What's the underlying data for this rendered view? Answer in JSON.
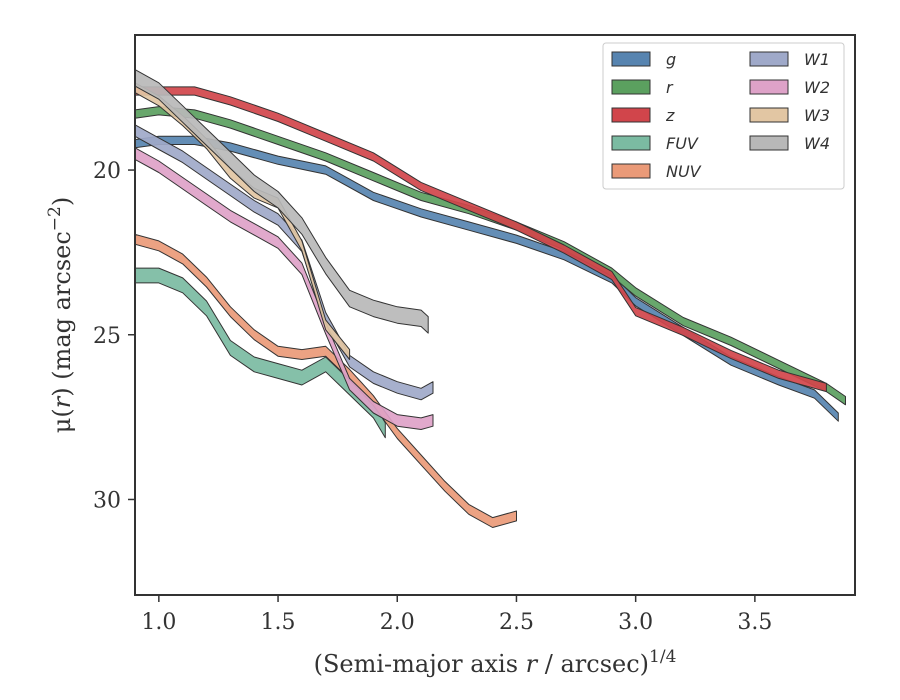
{
  "chart_data": {
    "type": "area",
    "xlabel_main": "(Semi-major axis ",
    "xlabel_var": "r",
    "xlabel_tail": " / arcsec)",
    "xlabel_exp": "1/4",
    "ylabel_pre": "μ(",
    "ylabel_var": "r",
    "ylabel_mid": ") (mag arcsec",
    "ylabel_exp": "−2",
    "ylabel_post": ")",
    "xlim": [
      0.9,
      3.92
    ],
    "ylim": [
      32.9,
      15.9
    ],
    "y_inverted": true,
    "xticks": [
      1.0,
      1.5,
      2.0,
      2.5,
      3.0,
      3.5
    ],
    "xtick_labels": [
      "1.0",
      "1.5",
      "2.0",
      "2.5",
      "3.0",
      "3.5"
    ],
    "yticks": [
      20,
      25,
      30
    ],
    "ytick_labels": [
      "20",
      "25",
      "30"
    ],
    "legend_position": "top-right",
    "legend_columns": 2,
    "series": [
      {
        "name": "g",
        "color": "#5784b0",
        "points": [
          [
            0.9,
            19.2
          ],
          [
            1.0,
            19.1
          ],
          [
            1.15,
            19.1
          ],
          [
            1.3,
            19.3
          ],
          [
            1.5,
            19.7
          ],
          [
            1.7,
            20.0
          ],
          [
            1.9,
            20.8
          ],
          [
            2.1,
            21.3
          ],
          [
            2.3,
            21.7
          ],
          [
            2.5,
            22.1
          ],
          [
            2.7,
            22.6
          ],
          [
            2.9,
            23.3
          ],
          [
            3.0,
            24.0
          ],
          [
            3.2,
            24.9
          ],
          [
            3.4,
            25.8
          ],
          [
            3.6,
            26.4
          ],
          [
            3.75,
            26.8
          ],
          [
            3.85,
            27.5
          ]
        ],
        "width": 0.25
      },
      {
        "name": "r",
        "color": "#5ba05f",
        "points": [
          [
            0.9,
            18.3
          ],
          [
            1.0,
            18.2
          ],
          [
            1.15,
            18.3
          ],
          [
            1.3,
            18.6
          ],
          [
            1.5,
            19.1
          ],
          [
            1.7,
            19.6
          ],
          [
            1.9,
            20.2
          ],
          [
            2.1,
            20.8
          ],
          [
            2.3,
            21.2
          ],
          [
            2.5,
            21.7
          ],
          [
            2.7,
            22.3
          ],
          [
            2.9,
            23.1
          ],
          [
            3.0,
            23.7
          ],
          [
            3.2,
            24.6
          ],
          [
            3.4,
            25.2
          ],
          [
            3.6,
            25.9
          ],
          [
            3.8,
            26.6
          ],
          [
            3.88,
            27.0
          ]
        ],
        "width": 0.25
      },
      {
        "name": "z",
        "color": "#d1454b",
        "points": [
          [
            0.9,
            17.6
          ],
          [
            1.0,
            17.6
          ],
          [
            1.15,
            17.6
          ],
          [
            1.3,
            17.9
          ],
          [
            1.5,
            18.4
          ],
          [
            1.7,
            19.0
          ],
          [
            1.9,
            19.6
          ],
          [
            2.1,
            20.5
          ],
          [
            2.3,
            21.1
          ],
          [
            2.5,
            21.7
          ],
          [
            2.7,
            22.4
          ],
          [
            2.9,
            23.2
          ],
          [
            3.0,
            24.3
          ],
          [
            3.2,
            24.9
          ],
          [
            3.4,
            25.6
          ],
          [
            3.6,
            26.2
          ],
          [
            3.8,
            26.6
          ]
        ],
        "width": 0.25
      },
      {
        "name": "FUV",
        "color": "#7bbba2",
        "points": [
          [
            0.9,
            23.2
          ],
          [
            1.0,
            23.2
          ],
          [
            1.1,
            23.5
          ],
          [
            1.2,
            24.2
          ],
          [
            1.3,
            25.4
          ],
          [
            1.4,
            25.9
          ],
          [
            1.5,
            26.1
          ],
          [
            1.6,
            26.3
          ],
          [
            1.7,
            25.9
          ],
          [
            1.8,
            26.6
          ],
          [
            1.9,
            27.3
          ],
          [
            1.95,
            27.9
          ]
        ],
        "width": 0.45
      },
      {
        "name": "NUV",
        "color": "#ea9a78",
        "points": [
          [
            0.9,
            22.1
          ],
          [
            1.0,
            22.3
          ],
          [
            1.1,
            22.7
          ],
          [
            1.2,
            23.4
          ],
          [
            1.3,
            24.3
          ],
          [
            1.4,
            25.0
          ],
          [
            1.5,
            25.5
          ],
          [
            1.6,
            25.6
          ],
          [
            1.7,
            25.5
          ],
          [
            1.8,
            26.2
          ],
          [
            1.9,
            27.0
          ],
          [
            2.0,
            28.0
          ],
          [
            2.1,
            28.8
          ],
          [
            2.2,
            29.6
          ],
          [
            2.3,
            30.3
          ],
          [
            2.4,
            30.7
          ],
          [
            2.5,
            30.5
          ]
        ],
        "width": 0.3
      },
      {
        "name": "W1",
        "color": "#9fa9c9",
        "points": [
          [
            0.9,
            18.8
          ],
          [
            1.0,
            19.2
          ],
          [
            1.1,
            19.6
          ],
          [
            1.2,
            20.1
          ],
          [
            1.3,
            20.6
          ],
          [
            1.4,
            21.1
          ],
          [
            1.5,
            21.5
          ],
          [
            1.6,
            22.3
          ],
          [
            1.7,
            24.5
          ],
          [
            1.8,
            25.8
          ],
          [
            1.9,
            26.3
          ],
          [
            2.0,
            26.6
          ],
          [
            2.1,
            26.8
          ],
          [
            2.15,
            26.6
          ]
        ],
        "width": 0.35
      },
      {
        "name": "W2",
        "color": "#dea2c8",
        "points": [
          [
            0.9,
            19.5
          ],
          [
            1.0,
            19.9
          ],
          [
            1.1,
            20.4
          ],
          [
            1.2,
            20.9
          ],
          [
            1.3,
            21.4
          ],
          [
            1.4,
            21.8
          ],
          [
            1.5,
            22.2
          ],
          [
            1.6,
            23.0
          ],
          [
            1.7,
            24.8
          ],
          [
            1.8,
            26.5
          ],
          [
            1.9,
            27.2
          ],
          [
            2.0,
            27.6
          ],
          [
            2.1,
            27.7
          ],
          [
            2.15,
            27.6
          ]
        ],
        "width": 0.35
      },
      {
        "name": "W3",
        "color": "#e2c6a3",
        "points": [
          [
            0.9,
            17.5
          ],
          [
            1.0,
            17.9
          ],
          [
            1.1,
            18.5
          ],
          [
            1.2,
            19.2
          ],
          [
            1.3,
            20.1
          ],
          [
            1.4,
            20.7
          ],
          [
            1.5,
            21.0
          ],
          [
            1.6,
            22.3
          ],
          [
            1.7,
            24.7
          ],
          [
            1.8,
            25.6
          ]
        ],
        "width": 0.3
      },
      {
        "name": "W4",
        "color": "#b8b8b8",
        "points": [
          [
            0.9,
            17.2
          ],
          [
            1.0,
            17.6
          ],
          [
            1.1,
            18.3
          ],
          [
            1.2,
            19.0
          ],
          [
            1.3,
            19.7
          ],
          [
            1.4,
            20.4
          ],
          [
            1.5,
            20.9
          ],
          [
            1.6,
            21.7
          ],
          [
            1.7,
            22.9
          ],
          [
            1.8,
            23.9
          ],
          [
            1.9,
            24.2
          ],
          [
            2.0,
            24.4
          ],
          [
            2.1,
            24.5
          ],
          [
            2.13,
            24.7
          ]
        ],
        "width": 0.5
      }
    ]
  }
}
